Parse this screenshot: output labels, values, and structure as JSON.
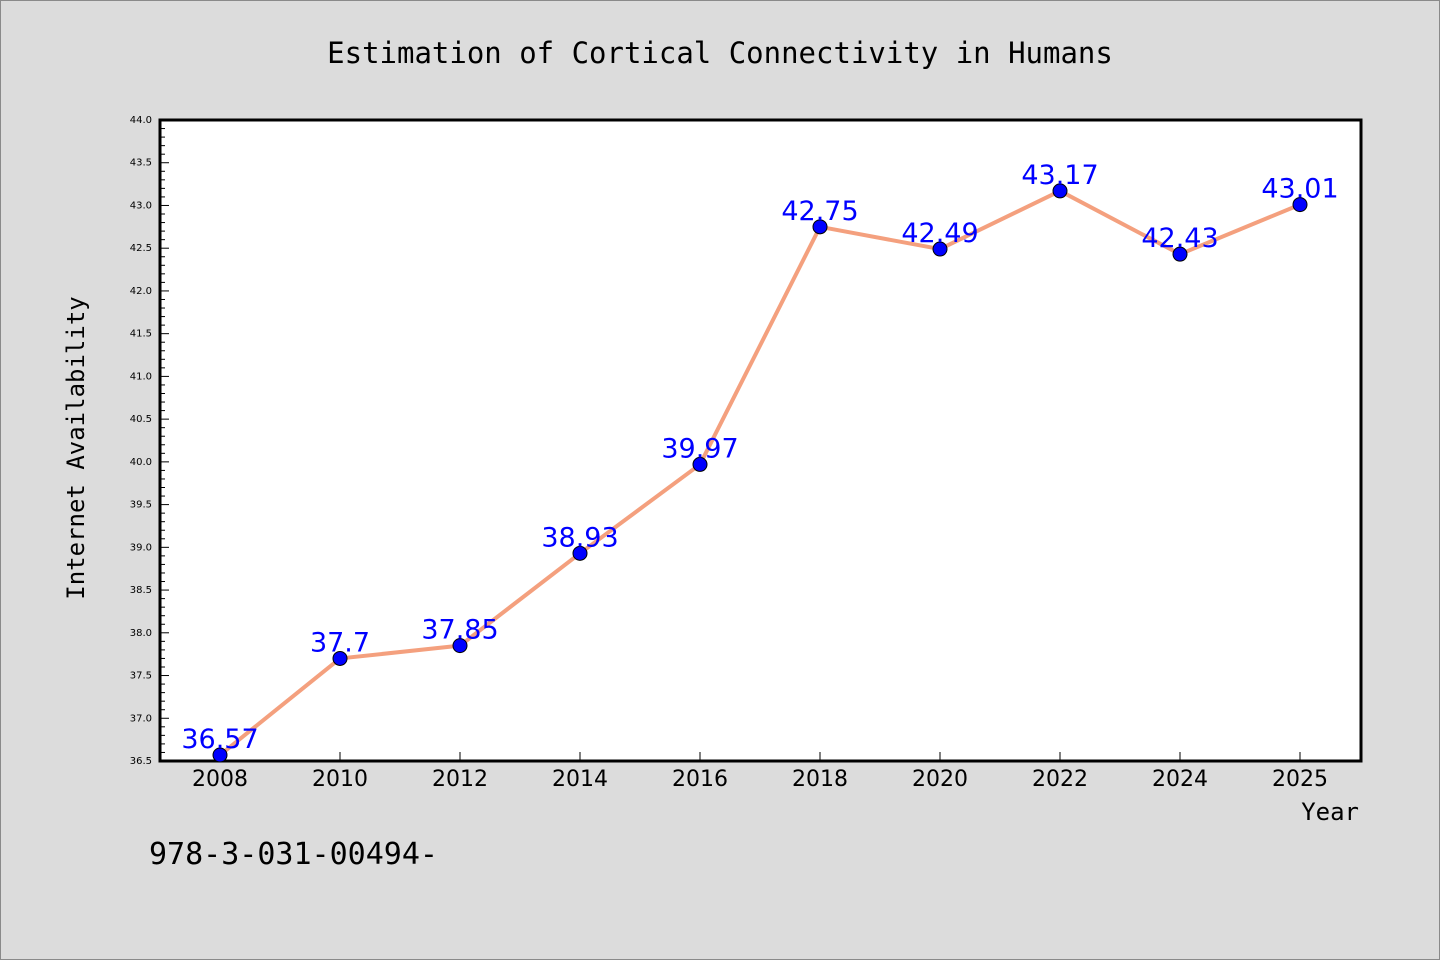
{
  "chart_data": {
    "type": "line",
    "title": "Estimation of Cortical Connectivity in Humans",
    "xlabel": "Year",
    "ylabel": "Internet Availability",
    "categories": [
      "2008",
      "2010",
      "2012",
      "2014",
      "2016",
      "2018",
      "2020",
      "2022",
      "2024",
      "2025"
    ],
    "series": [
      {
        "values": [
          36.57,
          37.7,
          37.85,
          38.93,
          39.97,
          42.75,
          42.49,
          43.17,
          42.43,
          43.01
        ],
        "line_color": "#f4a07e",
        "marker_color": "#0000ff"
      }
    ],
    "data_labels": [
      "36.57",
      "37.7",
      "37.85",
      "38.93",
      "39.97",
      "42.75",
      "42.49",
      "43.17",
      "42.43",
      "43.01"
    ],
    "ylim": [
      36.5,
      44.0
    ],
    "yticks": [
      "36.5",
      "37.0",
      "37.5",
      "38.0",
      "38.5",
      "39.0",
      "39.5",
      "40.0",
      "40.5",
      "41.0",
      "41.5",
      "42.0",
      "42.5",
      "43.0",
      "43.5",
      "44.0"
    ],
    "grid": false,
    "label_color": "#0000ff"
  },
  "footer_text": "978-3-031-00494-"
}
